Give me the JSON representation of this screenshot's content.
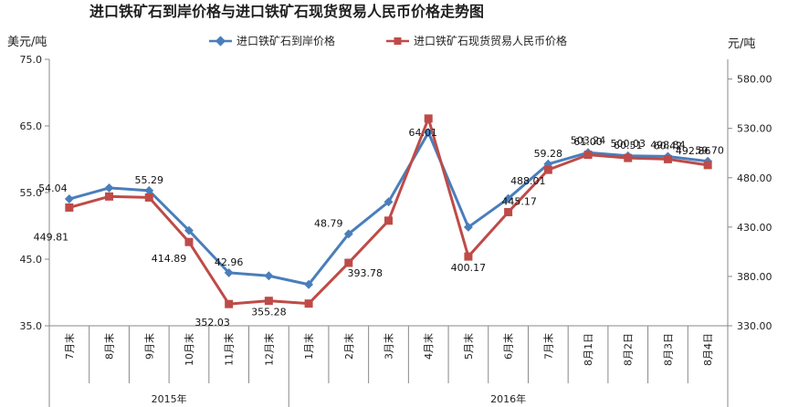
{
  "chart_data": {
    "type": "line",
    "title": "进口铁矿石到岸价格与进口铁矿石现货贸易人民币价格走势图",
    "left_axis_unit": "美元/吨",
    "right_axis_unit": "元/吨",
    "categories": [
      "7月末",
      "8月末",
      "9月末",
      "10月末",
      "11月末",
      "12月末",
      "1月末",
      "2月末",
      "3月末",
      "4月末",
      "5月末",
      "6月末",
      "7月末",
      "8月1日",
      "8月2日",
      "8月3日",
      "8月4日"
    ],
    "year_groups": [
      {
        "label": "2015年",
        "start": 0,
        "end": 5
      },
      {
        "label": "2016年",
        "start": 6,
        "end": 16
      }
    ],
    "left_axis": {
      "ylim": [
        35,
        75
      ],
      "ticks": [
        "35.0",
        "45.0",
        "55.0",
        "65.0",
        "75.0"
      ],
      "tick_values": [
        35,
        45,
        55,
        65,
        75
      ]
    },
    "right_axis": {
      "ylim": [
        330,
        600
      ],
      "ticks": [
        "330.00",
        "380.00",
        "430.00",
        "480.00",
        "530.00",
        "580.00"
      ],
      "tick_values": [
        330,
        380,
        430,
        480,
        530,
        580
      ]
    },
    "grid": false,
    "legend_position": "top",
    "series": [
      {
        "name": "进口铁矿石到岸价格",
        "axis": "left",
        "color": "#4a7ebb",
        "marker": "diamond",
        "values": [
          54.04,
          55.7,
          55.29,
          49.3,
          42.96,
          42.5,
          41.2,
          48.79,
          53.6,
          64.01,
          49.8,
          54.1,
          59.28,
          61.0,
          60.51,
          60.42,
          59.7
        ],
        "labels": [
          "54.04",
          null,
          "55.29",
          null,
          "42.96",
          null,
          null,
          "48.79",
          null,
          "64.01",
          null,
          null,
          "59.28",
          "61.00",
          "60.51",
          "60.42",
          "59.70"
        ]
      },
      {
        "name": "进口铁矿石现货贸易人民币价格",
        "axis": "right",
        "color": "#be4b48",
        "marker": "square",
        "values": [
          449.81,
          461.0,
          460.0,
          414.89,
          352.03,
          355.28,
          352.5,
          393.78,
          436.5,
          540.0,
          400.17,
          445.17,
          488.01,
          503.24,
          500.03,
          498.84,
          492.86
        ],
        "labels": [
          "449.81",
          null,
          null,
          "414.89",
          "352.03",
          "355.28",
          null,
          "393.78",
          null,
          null,
          "400.17",
          "445.17",
          "488.01",
          "503.24",
          "500.03",
          "498.84",
          "492.86"
        ]
      }
    ]
  },
  "colors": {
    "series1": "#4a7ebb",
    "series2": "#be4b48",
    "axis": "#888888",
    "text": "#222222"
  }
}
